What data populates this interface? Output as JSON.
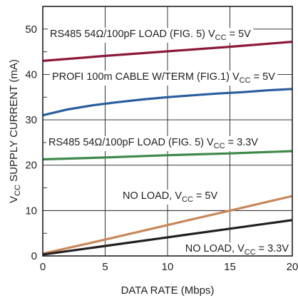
{
  "chart_data": {
    "type": "line",
    "xlabel": "DATA RATE (Mbps)",
    "ylabel": {
      "main": "V",
      "sub": "CC",
      "rest": " SUPPLY CURRENT (mA)"
    },
    "xlim": [
      0,
      20
    ],
    "ylim": [
      0,
      55
    ],
    "xticks": [
      0,
      5,
      10,
      15,
      20
    ],
    "yticks": [
      0,
      10,
      20,
      30,
      40,
      50
    ],
    "grid": true,
    "series": [
      {
        "color": "#8b1a3a",
        "x": [
          0,
          5,
          10,
          15,
          20
        ],
        "y": [
          43.0,
          44.1,
          45.1,
          46.1,
          47.2
        ],
        "label": {
          "pre": "RS485 54Ω/100pF LOAD (FIG. 5) V",
          "sub": "CC",
          "post": " = 5V"
        }
      },
      {
        "color": "#2a5d9e",
        "x": [
          0,
          2,
          4,
          6,
          8,
          10,
          12,
          14,
          16,
          18,
          20
        ],
        "y": [
          31.0,
          32.3,
          33.2,
          33.9,
          34.5,
          35.0,
          35.4,
          35.8,
          36.1,
          36.5,
          36.8
        ],
        "label": {
          "pre": "PROFI 100m CABLE W/TERM (FIG.1) V",
          "sub": "CC",
          "post": " = 5V"
        }
      },
      {
        "color": "#3f8a4a",
        "x": [
          0,
          5,
          10,
          15,
          20
        ],
        "y": [
          21.3,
          21.7,
          22.2,
          22.6,
          23.1
        ],
        "label": {
          "pre": "RS485 54Ω/100pF LOAD (FIG. 5) V",
          "sub": "CC",
          "post": " = 3.3V"
        }
      },
      {
        "color": "#c8875a",
        "x": [
          0,
          5,
          10,
          15,
          20
        ],
        "y": [
          0.5,
          3.6,
          6.8,
          10.0,
          13.2
        ],
        "label": {
          "pre": "NO LOAD, V",
          "sub": "CC",
          "post": " = 5V"
        }
      },
      {
        "color": "#231f20",
        "x": [
          0,
          5,
          10,
          15,
          20
        ],
        "y": [
          0.3,
          2.2,
          4.1,
          6.0,
          7.9
        ],
        "label": {
          "pre": "NO LOAD, V",
          "sub": "CC",
          "post": " = 3.3V"
        }
      }
    ]
  }
}
